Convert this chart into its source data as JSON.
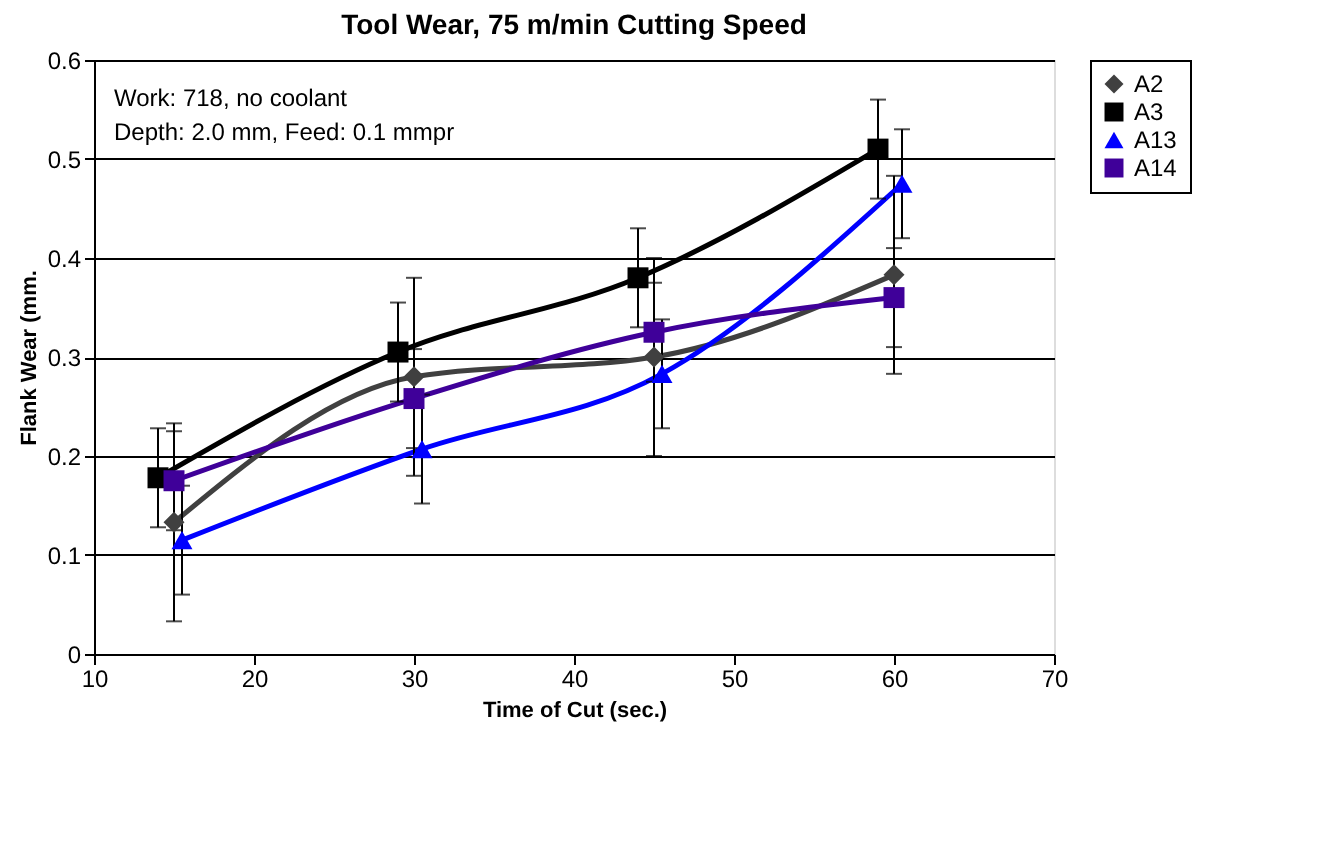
{
  "chart_data": {
    "type": "line",
    "title": "Tool Wear, 75 m/min Cutting Speed",
    "xlabel": "Time of Cut (sec.)",
    "ylabel": "Flank Wear (mm.",
    "xlim": [
      10,
      70
    ],
    "xticks": [
      10,
      20,
      30,
      40,
      50,
      60,
      70
    ],
    "ylim": [
      0,
      0.6
    ],
    "yticks": [
      0,
      0.1,
      0.2,
      0.3,
      0.4,
      0.5,
      0.6
    ],
    "grid": "y",
    "legend": "right",
    "line_style": "solid",
    "annotations": [
      "Work: 718, no coolant",
      "Depth: 2.0 mm, Feed: 0.1 mmpr"
    ],
    "series": [
      {
        "name": "A2",
        "color": "#404040",
        "marker": "diamond",
        "x": [
          15,
          30,
          45,
          60
        ],
        "values": [
          0.133,
          0.28,
          0.3,
          0.383
        ],
        "errors": [
          0.1,
          0.1,
          0.1,
          0.1
        ]
      },
      {
        "name": "A3",
        "color": "#000000",
        "marker": "square",
        "x": [
          14,
          29,
          44,
          59
        ],
        "values": [
          0.178,
          0.305,
          0.38,
          0.51
        ],
        "errors": [
          0.05,
          0.05,
          0.05,
          0.05
        ]
      },
      {
        "name": "A13",
        "color": "#0000ff",
        "marker": "triangle",
        "x": [
          15.5,
          30.5,
          45.5,
          60.5
        ],
        "values": [
          0.115,
          0.207,
          0.283,
          0.475
        ],
        "errors": [
          0.055,
          0.055,
          0.055,
          0.055
        ]
      },
      {
        "name": "A14",
        "color": "#3f0099",
        "marker": "square",
        "x": [
          15,
          30,
          45,
          60
        ],
        "values": [
          0.175,
          0.258,
          0.325,
          0.36
        ],
        "errors": [
          0.05,
          0.05,
          0.05,
          0.05
        ]
      }
    ]
  }
}
